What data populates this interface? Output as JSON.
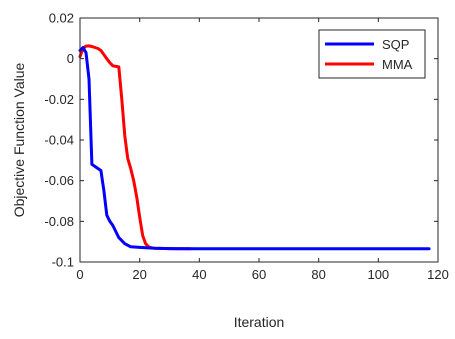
{
  "chart_data": {
    "type": "line",
    "title": "",
    "xlabel": "Iteration",
    "ylabel": "Objective Function Value",
    "xlim": [
      0,
      120
    ],
    "ylim": [
      -0.1,
      0.02
    ],
    "xticks": [
      0,
      20,
      40,
      60,
      80,
      100,
      120
    ],
    "yticks": [
      0.02,
      0,
      -0.02,
      -0.04,
      -0.06,
      -0.08,
      -0.1
    ],
    "xtick_labels": [
      "0",
      "20",
      "40",
      "60",
      "80",
      "100",
      "120"
    ],
    "ytick_labels": [
      "0.02",
      "0",
      "-0.02",
      "-0.04",
      "-0.06",
      "-0.08",
      "-0.1"
    ],
    "grid": false,
    "legend_placement": "top-right",
    "series": [
      {
        "name": "SQP",
        "color": "#0000ff",
        "x": [
          0,
          1,
          2,
          3,
          4,
          5,
          6,
          7,
          8,
          9,
          10,
          11,
          12,
          13,
          15,
          17,
          20,
          25,
          30,
          40,
          60,
          80,
          100,
          117
        ],
        "y": [
          0.004,
          0.0055,
          0.003,
          -0.01,
          -0.052,
          -0.053,
          -0.054,
          -0.055,
          -0.065,
          -0.077,
          -0.08,
          -0.082,
          -0.085,
          -0.088,
          -0.091,
          -0.0925,
          -0.0928,
          -0.0932,
          -0.0934,
          -0.0935,
          -0.0935,
          -0.0935,
          -0.0935,
          -0.0935
        ]
      },
      {
        "name": "MMA",
        "color": "#ff0000",
        "x": [
          0,
          1,
          2,
          3,
          4,
          5,
          6,
          7,
          8,
          9,
          10,
          11,
          12,
          13,
          14,
          15,
          16,
          17,
          18,
          19,
          20,
          21,
          22,
          23,
          24,
          25,
          27,
          30,
          33,
          37
        ],
        "y": [
          0.001,
          0.005,
          0.0062,
          0.0063,
          0.006,
          0.0055,
          0.005,
          0.004,
          0.002,
          0.0,
          -0.002,
          -0.0035,
          -0.0038,
          -0.004,
          -0.02,
          -0.038,
          -0.049,
          -0.054,
          -0.06,
          -0.068,
          -0.078,
          -0.087,
          -0.091,
          -0.0925,
          -0.093,
          -0.0932,
          -0.0933,
          -0.0934,
          -0.0935,
          -0.0935
        ]
      }
    ]
  }
}
